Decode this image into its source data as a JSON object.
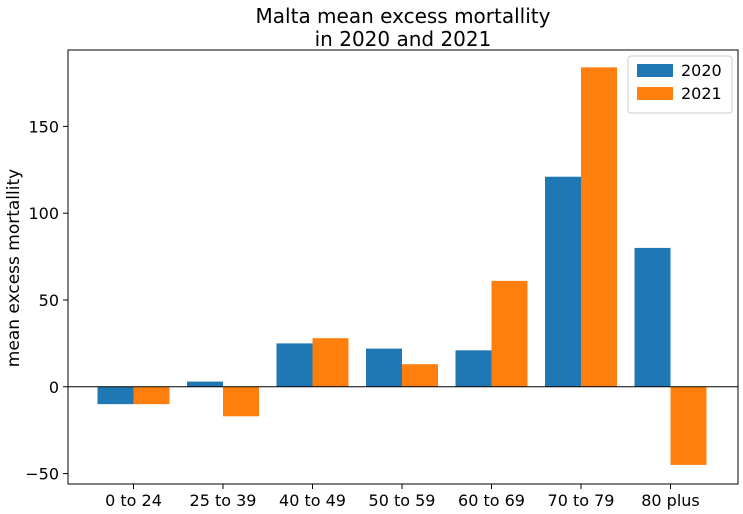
{
  "chart_data": {
    "type": "bar",
    "title": [
      "Malta mean excess mortallity",
      "in 2020 and 2021"
    ],
    "xlabel": "",
    "ylabel": "mean excess mortallity",
    "categories": [
      "0 to 24",
      "25 to 39",
      "40 to 49",
      "50 to 59",
      "60 to 69",
      "70 to 79",
      "80 plus"
    ],
    "series": [
      {
        "name": "2020",
        "color": "#1f77b4",
        "values": [
          -10,
          3,
          25,
          22,
          21,
          121,
          80
        ]
      },
      {
        "name": "2021",
        "color": "#ff7f0e",
        "values": [
          -10,
          -17,
          28,
          13,
          61,
          184,
          -45
        ]
      }
    ],
    "ylim": [
      -56,
      194
    ],
    "yticks": [
      -50,
      0,
      50,
      100,
      150
    ],
    "ytick_labels": [
      "−50",
      "0",
      "50",
      "100",
      "150"
    ],
    "zero_line": true,
    "grid": false,
    "legend": "top-right"
  }
}
